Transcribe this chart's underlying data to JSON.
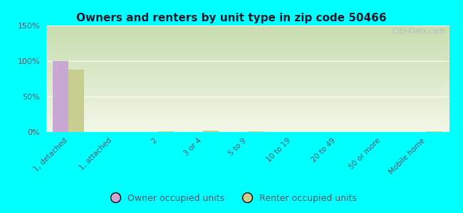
{
  "title": "Owners and renters by unit type in zip code 50466",
  "categories": [
    "1, detached",
    "1, attached",
    "2",
    "3 or 4",
    "5 to 9",
    "10 to 19",
    "20 to 49",
    "50 or more",
    "Mobile home"
  ],
  "owner_values": [
    100,
    0,
    0,
    0,
    0,
    0,
    0,
    0,
    0
  ],
  "renter_values": [
    88,
    0,
    1.5,
    2.0,
    1.0,
    0,
    0,
    0,
    0.8
  ],
  "owner_color": "#c9a8d4",
  "renter_color": "#c8cf8e",
  "background_color": "#00ffff",
  "grad_top": "#c8ddb0",
  "grad_bottom": "#f2f7e8",
  "ylim": [
    0,
    150
  ],
  "yticks": [
    0,
    50,
    100,
    150
  ],
  "ytick_labels": [
    "0%",
    "50%",
    "100%",
    "150%"
  ],
  "watermark": "City-Data.com",
  "bar_width": 0.35,
  "legend_labels": [
    "Owner occupied units",
    "Renter occupied units"
  ],
  "title_color": "#1a1a2e",
  "tick_color": "#555566"
}
